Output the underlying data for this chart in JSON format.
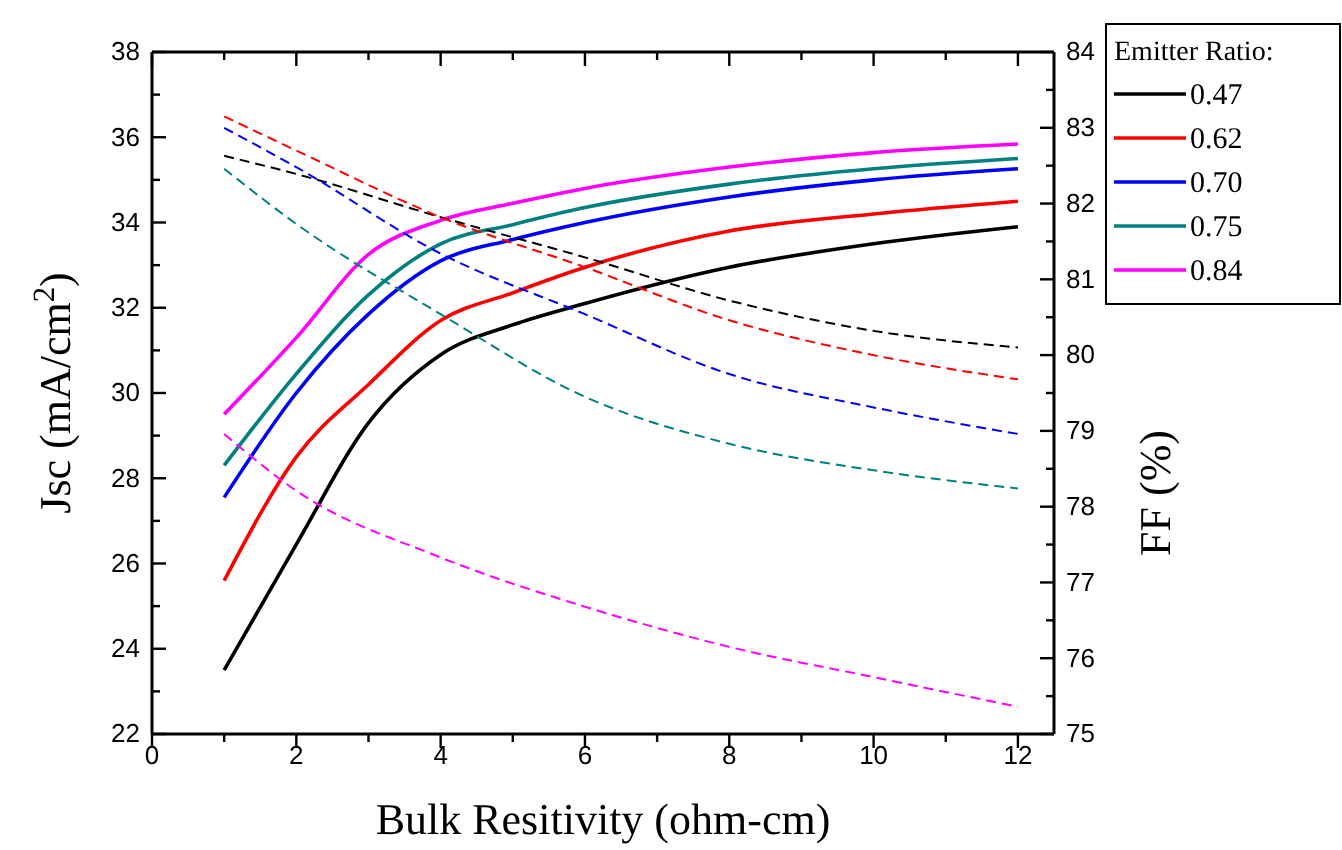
{
  "chart_data": {
    "type": "line",
    "xlabel": "Bulk Resitivity (ohm-cm)",
    "ylabel": "Jsc (mA/cm$^{2}$)",
    "y2label": "FF (%)",
    "legend_title": "Emitter Ratio:",
    "legend": "top right",
    "grid": false,
    "marker": "none",
    "x": [
      1,
      2,
      3,
      4,
      5,
      6,
      8,
      10,
      12
    ],
    "xlim": [
      0,
      12.5
    ],
    "xticks": [
      0,
      {
        "value": 1,
        "label": null
      },
      2,
      {
        "value": 3,
        "label": null
      },
      4,
      {
        "value": 5,
        "label": null
      },
      6,
      {
        "value": 7,
        "label": null
      },
      8,
      {
        "value": 9,
        "label": null
      },
      10,
      {
        "value": 11,
        "label": null
      },
      12
    ],
    "ylim": [
      22,
      38
    ],
    "yticks": [
      22,
      {
        "value": 23,
        "label": null
      },
      24,
      {
        "value": 25,
        "label": null
      },
      26,
      {
        "value": 27,
        "label": null
      },
      28,
      {
        "value": 29,
        "label": null
      },
      30,
      {
        "value": 31,
        "label": null
      },
      32,
      {
        "value": 33,
        "label": null
      },
      34,
      {
        "value": 35,
        "label": null
      },
      36,
      {
        "value": 37,
        "label": null
      },
      38
    ],
    "y2lim": [
      75,
      84
    ],
    "y2ticks": [
      75,
      {
        "value": 75.5,
        "label": null
      },
      76,
      {
        "value": 76.5,
        "label": null
      },
      77,
      {
        "value": 77.5,
        "label": null
      },
      78,
      {
        "value": 78.5,
        "label": null
      },
      79,
      {
        "value": 79.5,
        "label": null
      },
      80,
      {
        "value": 80.5,
        "label": null
      },
      81,
      {
        "value": 81.5,
        "label": null
      },
      82,
      {
        "value": 82.5,
        "label": null
      },
      83,
      {
        "value": 83.5,
        "label": null
      },
      84
    ],
    "series": [
      {
        "name": "0.47",
        "color": "#000000",
        "line_style": "solid",
        "values": [
          23.5,
          26.45,
          29.3,
          30.9,
          31.6,
          32.1,
          32.95,
          33.5,
          33.9
        ]
      },
      {
        "name": "0.62",
        "color": "#ff0000",
        "line_style": "solid",
        "values": [
          25.6,
          28.5,
          30.2,
          31.7,
          32.35,
          32.95,
          33.8,
          34.2,
          34.5
        ]
      },
      {
        "name": "0.70",
        "color": "#0000ff",
        "line_style": "solid",
        "values": [
          27.55,
          30.0,
          31.85,
          33.1,
          33.6,
          34.0,
          34.6,
          35.0,
          35.26
        ]
      },
      {
        "name": "0.75",
        "color": "#008080",
        "line_style": "solid",
        "values": [
          28.3,
          30.45,
          32.3,
          33.5,
          33.95,
          34.35,
          34.9,
          35.26,
          35.5
        ]
      },
      {
        "name": "0.84",
        "color": "#ff00ff",
        "line_style": "solid",
        "values": [
          29.5,
          31.3,
          33.25,
          34.05,
          34.45,
          34.8,
          35.3,
          35.64,
          35.84
        ]
      },
      {
        "color": "#000000",
        "axis": "y2",
        "line_style": "dashed",
        "values": [
          82.63,
          82.39,
          null,
          81.82,
          null,
          81.29,
          80.72,
          80.32,
          80.1
        ]
      },
      {
        "color": "#ff0000",
        "axis": "y2",
        "line_style": "dashed",
        "values": [
          83.15,
          82.7,
          null,
          81.82,
          null,
          81.16,
          80.46,
          80.0,
          79.68
        ]
      },
      {
        "color": "#0000ff",
        "axis": "y2",
        "line_style": "dashed",
        "values": [
          83.0,
          82.48,
          null,
          81.34,
          null,
          80.54,
          79.75,
          79.31,
          78.96
        ]
      },
      {
        "color": "#008080",
        "axis": "y2",
        "line_style": "dashed",
        "values": [
          82.46,
          81.73,
          null,
          80.54,
          null,
          79.45,
          78.83,
          78.48,
          78.24
        ]
      },
      {
        "color": "#ff00ff",
        "axis": "y2",
        "line_style": "dashed",
        "values": [
          78.96,
          78.21,
          null,
          77.33,
          null,
          76.68,
          76.15,
          75.75,
          75.36
        ]
      }
    ]
  }
}
